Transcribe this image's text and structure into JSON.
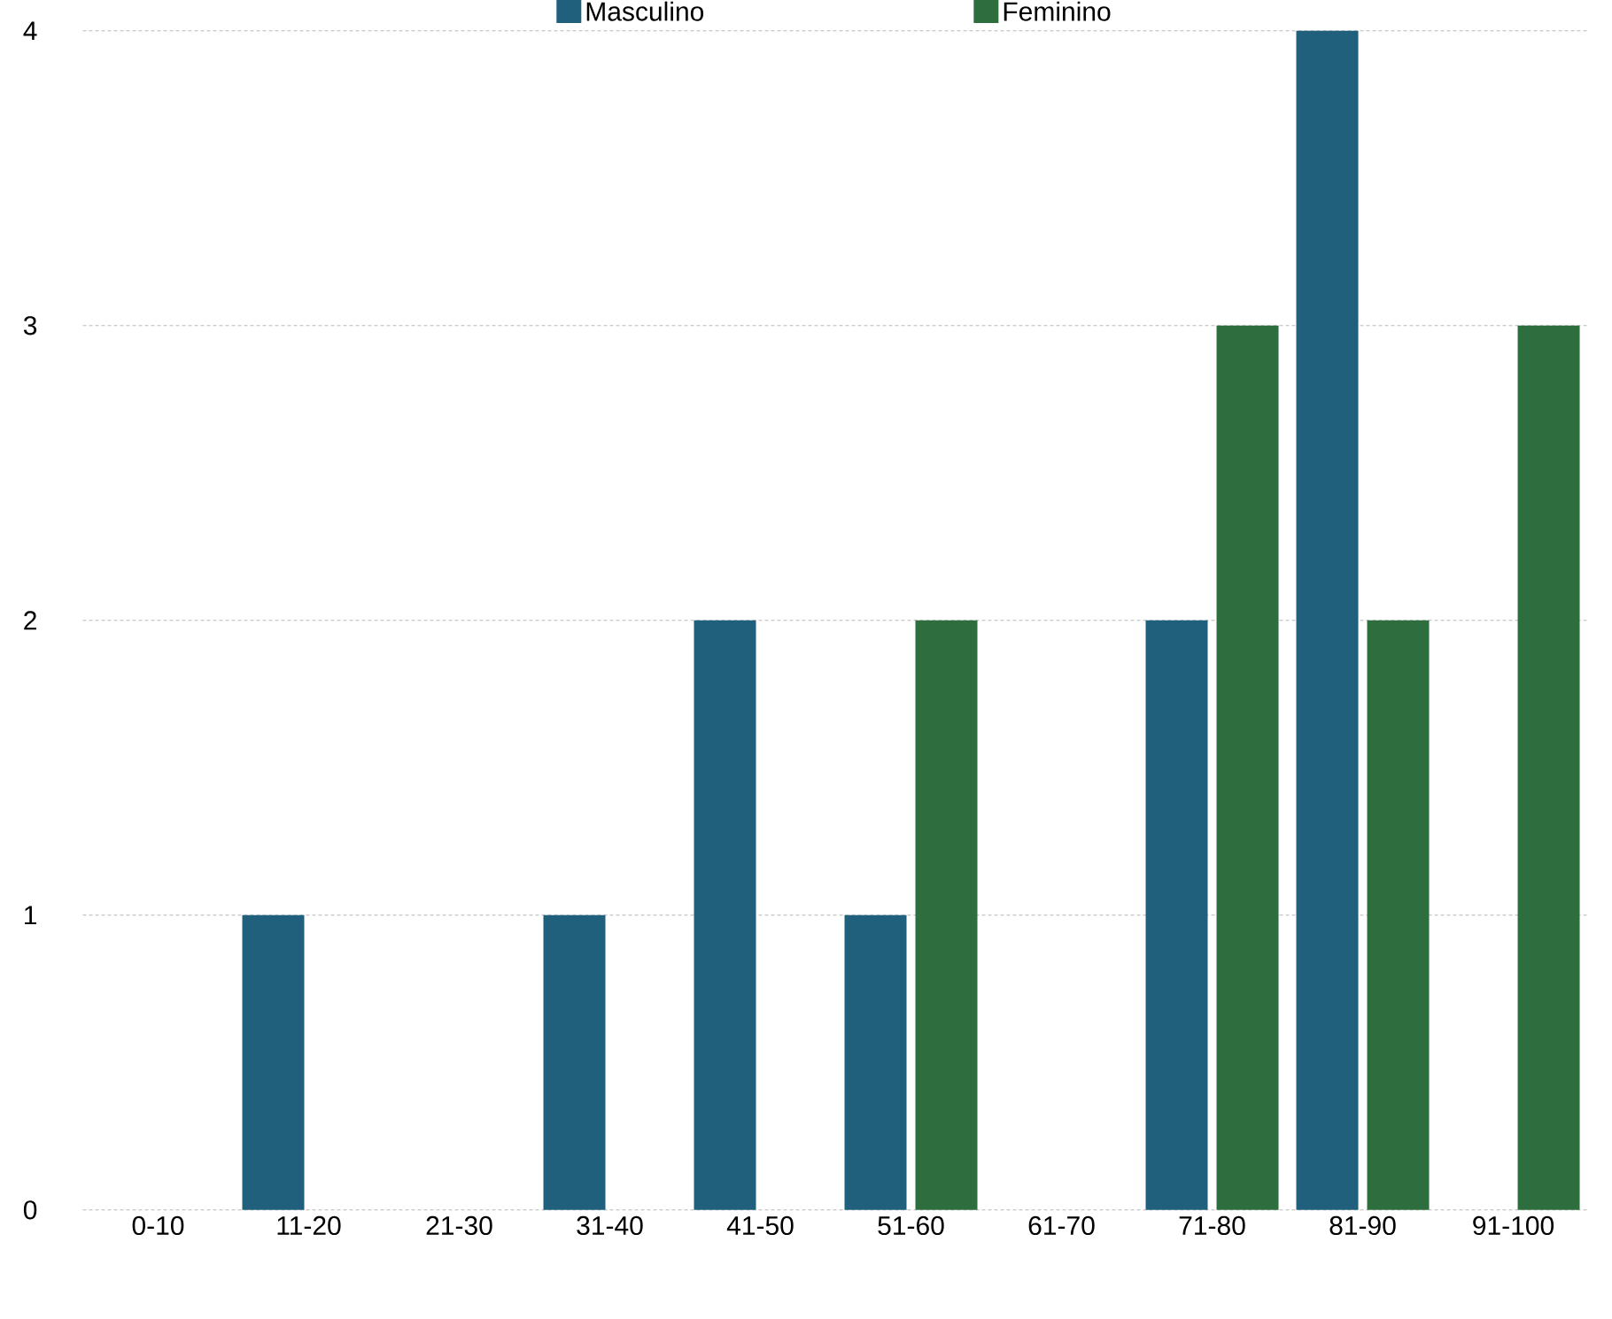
{
  "chart_data": {
    "type": "bar",
    "categories": [
      "0-10",
      "11-20",
      "21-30",
      "31-40",
      "41-50",
      "51-60",
      "61-70",
      "71-80",
      "81-90",
      "91-100"
    ],
    "series": [
      {
        "name": "Masculino",
        "color": "#20607c",
        "values": [
          0,
          1,
          0,
          1,
          2,
          1,
          0,
          2,
          4,
          0
        ]
      },
      {
        "name": "Feminino",
        "color": "#2e6e3e",
        "values": [
          0,
          0,
          0,
          0,
          0,
          2,
          0,
          3,
          2,
          3
        ]
      }
    ],
    "ylim": [
      0,
      4
    ],
    "yticks": [
      0,
      1,
      2,
      3,
      4
    ],
    "grid": "y",
    "legend": "top"
  }
}
